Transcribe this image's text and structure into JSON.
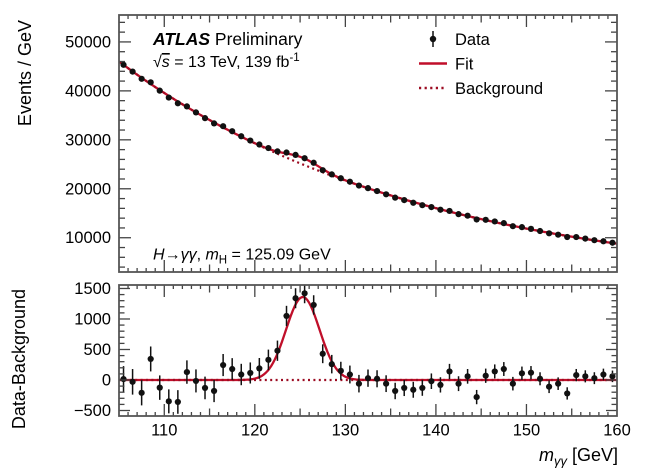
{
  "figure": {
    "annotations": {
      "atlas_parts": [
        {
          "t": "ATLAS",
          "b": 1,
          "i": 1
        },
        {
          "t": "  Preliminary"
        }
      ],
      "lumi_parts": [
        {
          "t": "√"
        },
        {
          "t": "s",
          "i": 1,
          "ol": 1
        },
        {
          "t": " = 13 TeV, 139 fb"
        },
        {
          "t": "-1",
          "sup": 1
        }
      ],
      "process_parts": [
        {
          "t": "H",
          "i": 1
        },
        {
          "t": "→"
        },
        {
          "t": "γγ",
          "i": 1
        },
        {
          "t": ", "
        },
        {
          "t": "m",
          "i": 1
        },
        {
          "t": "H",
          "sub": 1
        },
        {
          "t": " = 125.09 GeV"
        }
      ]
    },
    "legend": [
      {
        "label": "Data",
        "type": "marker"
      },
      {
        "label": "Fit",
        "type": "line"
      },
      {
        "label": "Background",
        "type": "dotted"
      }
    ],
    "colors": {
      "fit": "#c00f2a",
      "background_curve": "#9c0c22",
      "data_marker": "#111111",
      "frame": "#555555",
      "tick": "#444444",
      "text": "#000000"
    }
  },
  "chart_data": {
    "type": "scatter",
    "x_axis": {
      "title_parts": [
        {
          "t": "m",
          "i": 1
        },
        {
          "t": "γγ",
          "i": 1,
          "sub": 1
        },
        {
          "t": " [GeV]"
        }
      ],
      "lim": [
        105,
        160
      ],
      "major_ticks": [
        110,
        120,
        130,
        140,
        150,
        160
      ],
      "tick_labels": [
        "110",
        "120",
        "130",
        "140",
        "150",
        "160"
      ]
    },
    "panels": {
      "main": {
        "ylabel": "Events / GeV",
        "ylim": [
          3000,
          55500
        ],
        "major_ticks": [
          10000,
          20000,
          30000,
          40000,
          50000
        ],
        "tick_labels": [
          "10000",
          "20000",
          "30000",
          "40000",
          "50000"
        ]
      },
      "ratio": {
        "ylabel": "Data-Background",
        "ylim": [
          -590,
          1557
        ],
        "major_ticks": [
          -500,
          0,
          500,
          1000,
          1500
        ],
        "tick_labels": [
          "−500",
          "0",
          "500",
          "1000",
          "1500"
        ]
      }
    },
    "bin_width_gev": 1,
    "bins": [
      105.5,
      106.5,
      107.5,
      108.5,
      109.5,
      110.5,
      111.5,
      112.5,
      113.5,
      114.5,
      115.5,
      116.5,
      117.5,
      118.5,
      119.5,
      120.5,
      121.5,
      122.5,
      123.5,
      124.5,
      125.5,
      126.5,
      127.5,
      128.5,
      129.5,
      130.5,
      131.5,
      132.5,
      133.5,
      134.5,
      135.5,
      136.5,
      137.5,
      138.5,
      139.5,
      140.5,
      141.5,
      142.5,
      143.5,
      144.5,
      145.5,
      146.5,
      147.5,
      148.5,
      149.5,
      150.5,
      151.5,
      152.5,
      153.5,
      154.5,
      155.5,
      156.5,
      157.5,
      158.5,
      159.5
    ],
    "series": {
      "data": [
        45325,
        43940,
        42460,
        41745,
        40045,
        38630,
        37470,
        36830,
        35605,
        34430,
        33360,
        32785,
        31760,
        30730,
        29845,
        29040,
        28320,
        27640,
        27410,
        26920,
        26240,
        25310,
        23800,
        22940,
        22150,
        21440,
        20660,
        20130,
        19530,
        18870,
        18190,
        17690,
        17140,
        16650,
        16260,
        15720,
        15470,
        14820,
        14500,
        13730,
        13660,
        13330,
        12980,
        12360,
        12160,
        11810,
        11370,
        10900,
        10620,
        10150,
        10140,
        9820,
        9500,
        9280,
        8980
      ],
      "background": [
        45310,
        43970,
        42670,
        41400,
        40170,
        38980,
        37830,
        36700,
        35620,
        34560,
        33540,
        32540,
        31580,
        30640,
        29730,
        28850,
        27990,
        27160,
        26360,
        25580,
        24820,
        24080,
        23370,
        22680,
        22000,
        21350,
        20720,
        20100,
        19510,
        18930,
        18370,
        17820,
        17300,
        16780,
        16280,
        15800,
        15330,
        14880,
        14440,
        14010,
        13590,
        13190,
        12800,
        12420,
        12050,
        11690,
        11350,
        11010,
        10680,
        10370,
        10060,
        9760,
        9470,
        9190,
        8920
      ],
      "data_minus_background": [
        15,
        -30,
        -210,
        345,
        -125,
        -350,
        -360,
        130,
        -15,
        -130,
        -180,
        245,
        180,
        90,
        115,
        190,
        330,
        480,
        1050,
        1340,
        1420,
        1230,
        430,
        260,
        150,
        90,
        -60,
        30,
        20,
        -60,
        -180,
        -130,
        -160,
        -130,
        -20,
        -80,
        140,
        -60,
        60,
        -280,
        70,
        140,
        180,
        -60,
        110,
        120,
        20,
        -110,
        -60,
        -220,
        80,
        60,
        30,
        90,
        60
      ]
    },
    "signal_fit": {
      "amplitude": 1360,
      "mean": 125.3,
      "sigma": 1.85
    },
    "background_model": {
      "A": 46000,
      "k": 0.0301,
      "x0": 105
    }
  }
}
